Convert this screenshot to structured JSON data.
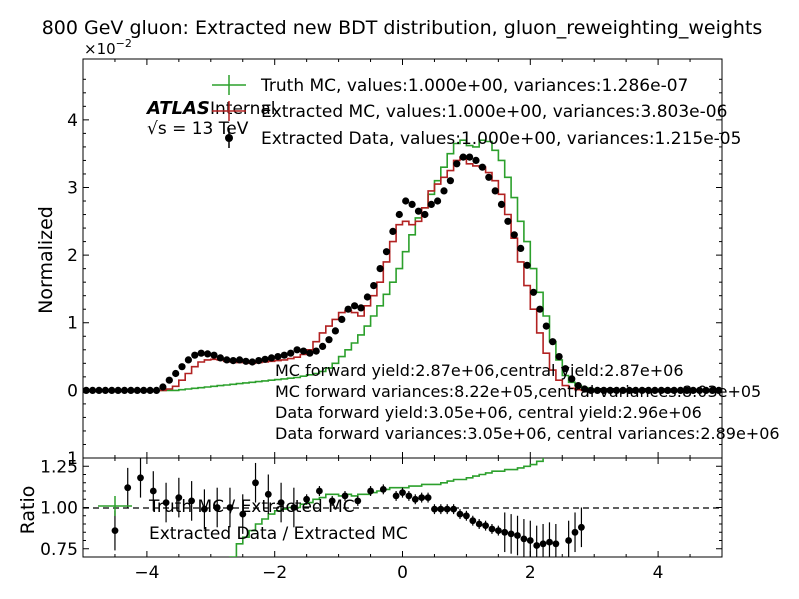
{
  "chart_data": [
    {
      "panel": "main",
      "type": "line",
      "title": "800 GeV gluon: Extracted new BDT distribution, gluon_reweighting_weights",
      "ylabel": "Normalized",
      "y_scale_label": "×10",
      "y_scale_exponent": "−2",
      "xlim": [
        -5,
        5
      ],
      "ylim": [
        -1,
        4.9
      ],
      "y_unit": "×10^-2",
      "x_ticks": [
        "−4",
        "−2",
        "0",
        "2",
        "4"
      ],
      "y_ticks": [
        {
          "v": 0,
          "label": "0"
        },
        {
          "v": 1,
          "label": "1"
        },
        {
          "v": 2,
          "label": "2"
        },
        {
          "v": 3,
          "label": "3"
        },
        {
          "v": 4,
          "label": "4"
        }
      ],
      "ylabel_partial": "1",
      "atlas_label": "ATLAS",
      "atlas_sub": "Internal",
      "energy_label": "√s = 13 TeV",
      "legend_position": "top",
      "grid": false,
      "legend": [
        {
          "name": "Truth MC, values:1.000e+00, variances:1.286e-07",
          "color": "#2ca02c",
          "marker": "line"
        },
        {
          "name": "Extracted MC, values:1.000e+00, variances:3.803e-06",
          "color": "#b22222",
          "marker": "line"
        },
        {
          "name": "Extracted Data, values:1.000e+00, variances:1.215e-05",
          "color": "#000000",
          "marker": "point"
        }
      ],
      "annotations": [
        "MC forward yield:2.87e+06,central yield:2.87e+06",
        "MC forward variances:8.22e+05,central variances:8.03e+05",
        "Data forward yield:3.05e+06, central yield:2.96e+06",
        "Data forward variances:3.05e+06, central variances:2.89e+06"
      ],
      "bins": {
        "start": -5,
        "width": 0.1
      },
      "series": [
        {
          "name": "Truth MC",
          "color": "#2ca02c",
          "style": "step",
          "values": [
            0,
            0,
            0,
            0,
            0,
            0,
            0,
            0,
            0,
            0,
            0,
            0,
            0,
            0,
            0,
            0.01,
            0.02,
            0.03,
            0.04,
            0.05,
            0.06,
            0.07,
            0.08,
            0.09,
            0.1,
            0.11,
            0.12,
            0.13,
            0.14,
            0.15,
            0.16,
            0.17,
            0.18,
            0.19,
            0.21,
            0.23,
            0.25,
            0.28,
            0.33,
            0.4,
            0.5,
            0.6,
            0.7,
            0.82,
            0.95,
            1.1,
            1.25,
            1.42,
            1.6,
            1.8,
            2.05,
            2.3,
            2.55,
            2.7,
            2.9,
            3.1,
            3.3,
            3.5,
            3.65,
            3.7,
            3.62,
            3.6,
            3.7,
            3.68,
            3.55,
            3.4,
            3.15,
            2.85,
            2.5,
            2.2,
            1.8,
            1.45,
            1.1,
            0.72,
            0.45,
            0.22,
            0.12,
            0.07,
            0.04,
            0.02,
            0.01,
            0,
            0,
            0,
            0,
            0,
            0,
            0,
            0,
            0,
            0,
            0,
            0,
            0,
            0,
            0,
            0,
            0,
            0,
            0
          ]
        },
        {
          "name": "Extracted MC",
          "color": "#b22222",
          "style": "step",
          "values": [
            0,
            0,
            0,
            0,
            0,
            0,
            0,
            0,
            0,
            0,
            0,
            0,
            0,
            0.02,
            0.06,
            0.15,
            0.25,
            0.35,
            0.42,
            0.45,
            0.46,
            0.45,
            0.43,
            0.42,
            0.41,
            0.41,
            0.4,
            0.41,
            0.42,
            0.43,
            0.44,
            0.45,
            0.47,
            0.49,
            0.53,
            0.6,
            0.72,
            0.85,
            0.95,
            1.05,
            1.15,
            1.18,
            1.15,
            1.1,
            1.25,
            1.4,
            1.6,
            1.9,
            2.2,
            2.45,
            2.5,
            2.45,
            2.5,
            2.7,
            2.95,
            3.05,
            3.15,
            3.25,
            3.4,
            3.45,
            3.35,
            3.32,
            3.3,
            3.22,
            3.1,
            2.9,
            2.6,
            2.25,
            1.9,
            1.55,
            1.2,
            0.85,
            0.55,
            0.3,
            0.15,
            0.07,
            0.03,
            0.01,
            0,
            0,
            0,
            0,
            0,
            0,
            0,
            0,
            0,
            0,
            0,
            0,
            0,
            0,
            0,
            0,
            0,
            0,
            0,
            0,
            0,
            0
          ]
        },
        {
          "name": "Extracted Data",
          "color": "#000000",
          "style": "points",
          "values": [
            0,
            0,
            0,
            0,
            0,
            0,
            0,
            0,
            0,
            0,
            0,
            0,
            0.05,
            0.15,
            0.25,
            0.35,
            0.45,
            0.52,
            0.55,
            0.54,
            0.52,
            0.48,
            0.45,
            0.44,
            0.45,
            0.43,
            0.42,
            0.44,
            0.46,
            0.48,
            0.5,
            0.52,
            0.55,
            0.6,
            0.58,
            0.55,
            0.58,
            0.65,
            0.75,
            0.88,
            1.05,
            1.2,
            1.25,
            1.22,
            1.38,
            1.55,
            1.8,
            2.05,
            2.35,
            2.6,
            2.8,
            2.75,
            2.65,
            2.6,
            2.75,
            2.8,
            2.95,
            3.1,
            3.35,
            3.45,
            3.45,
            3.4,
            3.3,
            3.15,
            2.95,
            2.75,
            2.5,
            2.3,
            2.1,
            1.85,
            1.45,
            1.2,
            0.95,
            0.72,
            0.5,
            0.32,
            0.17,
            0.07,
            0.02,
            0,
            0,
            0,
            0,
            0,
            0,
            0,
            0,
            0,
            0,
            0,
            0,
            0,
            0,
            0,
            0,
            0,
            0,
            0,
            0,
            0
          ]
        }
      ]
    },
    {
      "panel": "ratio",
      "type": "line",
      "ylabel": "Ratio",
      "xlim": [
        -5,
        5
      ],
      "ylim": [
        0.7,
        1.3
      ],
      "x_ticks": [
        "−4",
        "−2",
        "0",
        "2",
        "4"
      ],
      "y_ticks": [
        {
          "v": 0.75,
          "label": "0.75"
        },
        {
          "v": 1.0,
          "label": "1.00"
        },
        {
          "v": 1.25,
          "label": "1.25"
        }
      ],
      "reference_line": 1.0,
      "legend": [
        {
          "name": "Truth MC / Extracted MC",
          "color": "#2ca02c",
          "marker": "line"
        },
        {
          "name": "Extracted Data / Extracted MC",
          "color": "#000000",
          "marker": "point"
        }
      ],
      "series": [
        {
          "name": "Truth MC / Extracted MC",
          "color": "#2ca02c",
          "style": "step",
          "x": [
            -2.9,
            -2.8,
            -2.7,
            -2.6,
            -2.5,
            -2.4,
            -2.3,
            -2.2,
            -2.1,
            -2.0,
            -1.9,
            -1.8,
            -1.7,
            -1.6,
            -1.5,
            -1.4,
            -1.3,
            -1.2,
            -1.1,
            -1.0,
            -0.9,
            -0.8,
            -0.7,
            -0.6,
            -0.5,
            -0.4,
            -0.3,
            -0.2,
            -0.1,
            0.0,
            0.1,
            0.2,
            0.3,
            0.4,
            0.5,
            0.6,
            0.7,
            0.8,
            0.9,
            1.0,
            1.1,
            1.2,
            1.3,
            1.4,
            1.5,
            1.6,
            1.7,
            1.8,
            1.9,
            2.0,
            2.1,
            2.2
          ],
          "values": [
            0.55,
            0.62,
            0.7,
            0.78,
            0.82,
            0.86,
            0.9,
            0.93,
            0.96,
            0.98,
            0.99,
            1.0,
            1.0,
            1.02,
            1.03,
            1.05,
            1.06,
            1.08,
            1.08,
            1.07,
            1.08,
            1.07,
            1.08,
            1.08,
            1.09,
            1.1,
            1.11,
            1.12,
            1.12,
            1.12,
            1.13,
            1.13,
            1.14,
            1.14,
            1.14,
            1.15,
            1.16,
            1.17,
            1.17,
            1.18,
            1.19,
            1.2,
            1.21,
            1.22,
            1.22,
            1.23,
            1.23,
            1.24,
            1.25,
            1.26,
            1.28,
            1.31
          ]
        },
        {
          "name": "Extracted Data / Extracted MC",
          "color": "#000000",
          "style": "points",
          "x": [
            -4.5,
            -4.3,
            -4.1,
            -3.9,
            -3.7,
            -3.5,
            -3.3,
            -3.1,
            -2.9,
            -2.7,
            -2.5,
            -2.3,
            -2.1,
            -1.9,
            -1.7,
            -1.5,
            -1.3,
            -1.1,
            -0.9,
            -0.7,
            -0.5,
            -0.3,
            -0.1,
            0.0,
            0.1,
            0.2,
            0.3,
            0.4,
            0.5,
            0.6,
            0.7,
            0.8,
            0.9,
            1.0,
            1.1,
            1.2,
            1.3,
            1.4,
            1.5,
            1.6,
            1.7,
            1.8,
            1.9,
            2.0,
            2.1,
            2.2,
            2.3,
            2.4,
            2.6,
            2.7,
            2.8
          ],
          "values": [
            0.86,
            1.12,
            1.18,
            1.1,
            1.03,
            1.06,
            1.04,
            0.99,
            1.0,
            1.0,
            0.96,
            1.15,
            1.08,
            1.03,
            1.0,
            1.05,
            1.1,
            1.04,
            1.07,
            1.04,
            1.1,
            1.11,
            1.07,
            1.09,
            1.07,
            1.05,
            1.06,
            1.06,
            0.99,
            0.99,
            0.99,
            0.99,
            0.96,
            0.95,
            0.92,
            0.9,
            0.89,
            0.87,
            0.86,
            0.85,
            0.84,
            0.83,
            0.81,
            0.8,
            0.77,
            0.78,
            0.79,
            0.78,
            0.8,
            0.85,
            0.88
          ]
        }
      ]
    }
  ]
}
